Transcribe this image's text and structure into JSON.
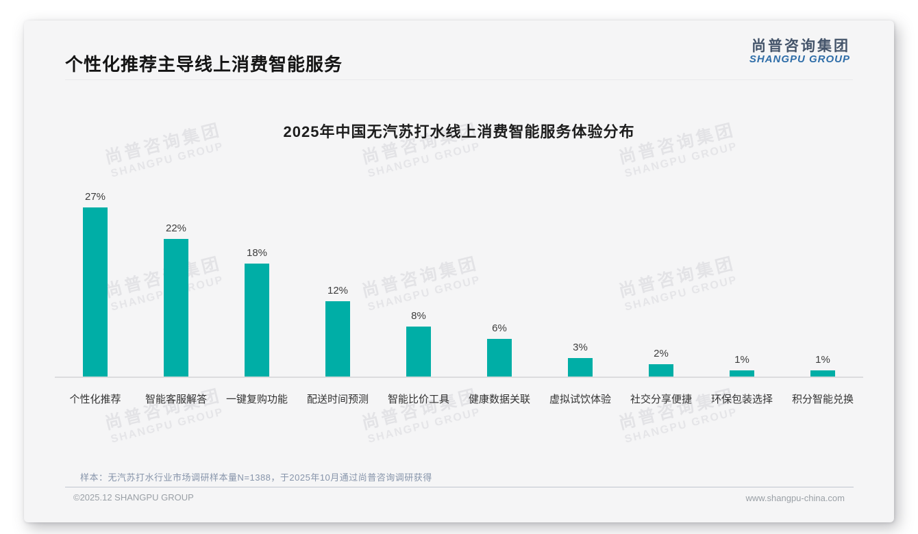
{
  "header": {
    "title": "个性化推荐主导线上消费智能服务"
  },
  "logo": {
    "zh": "尚普咨询集团",
    "en": "SHANGPU GROUP"
  },
  "watermark": {
    "zh": "尚普咨询集团",
    "en": "SHANGPU GROUP"
  },
  "chart_data": {
    "type": "bar",
    "title": "2025年中国无汽苏打水线上消费智能服务体验分布",
    "categories": [
      "个性化推荐",
      "智能客服解答",
      "一键复购功能",
      "配送时间预测",
      "智能比价工具",
      "健康数据关联",
      "虚拟试饮体验",
      "社交分享便捷",
      "环保包装选择",
      "积分智能兑换"
    ],
    "values": [
      27,
      22,
      18,
      12,
      8,
      6,
      3,
      2,
      1,
      1
    ],
    "value_labels": [
      "27%",
      "22%",
      "18%",
      "12%",
      "8%",
      "6%",
      "3%",
      "2%",
      "1%",
      "1%"
    ],
    "unit": "%",
    "bar_color": "#00aea6",
    "ylim": [
      0,
      30
    ],
    "grid": false,
    "legend": "none",
    "xlabel": "",
    "ylabel": ""
  },
  "footer": {
    "source_note": "样本：无汽苏打水行业市场调研样本量N=1388，于2025年10月通过尚普咨询调研获得",
    "left": "©2025.12 SHANGPU GROUP",
    "right": "www.shangpu-china.com"
  }
}
